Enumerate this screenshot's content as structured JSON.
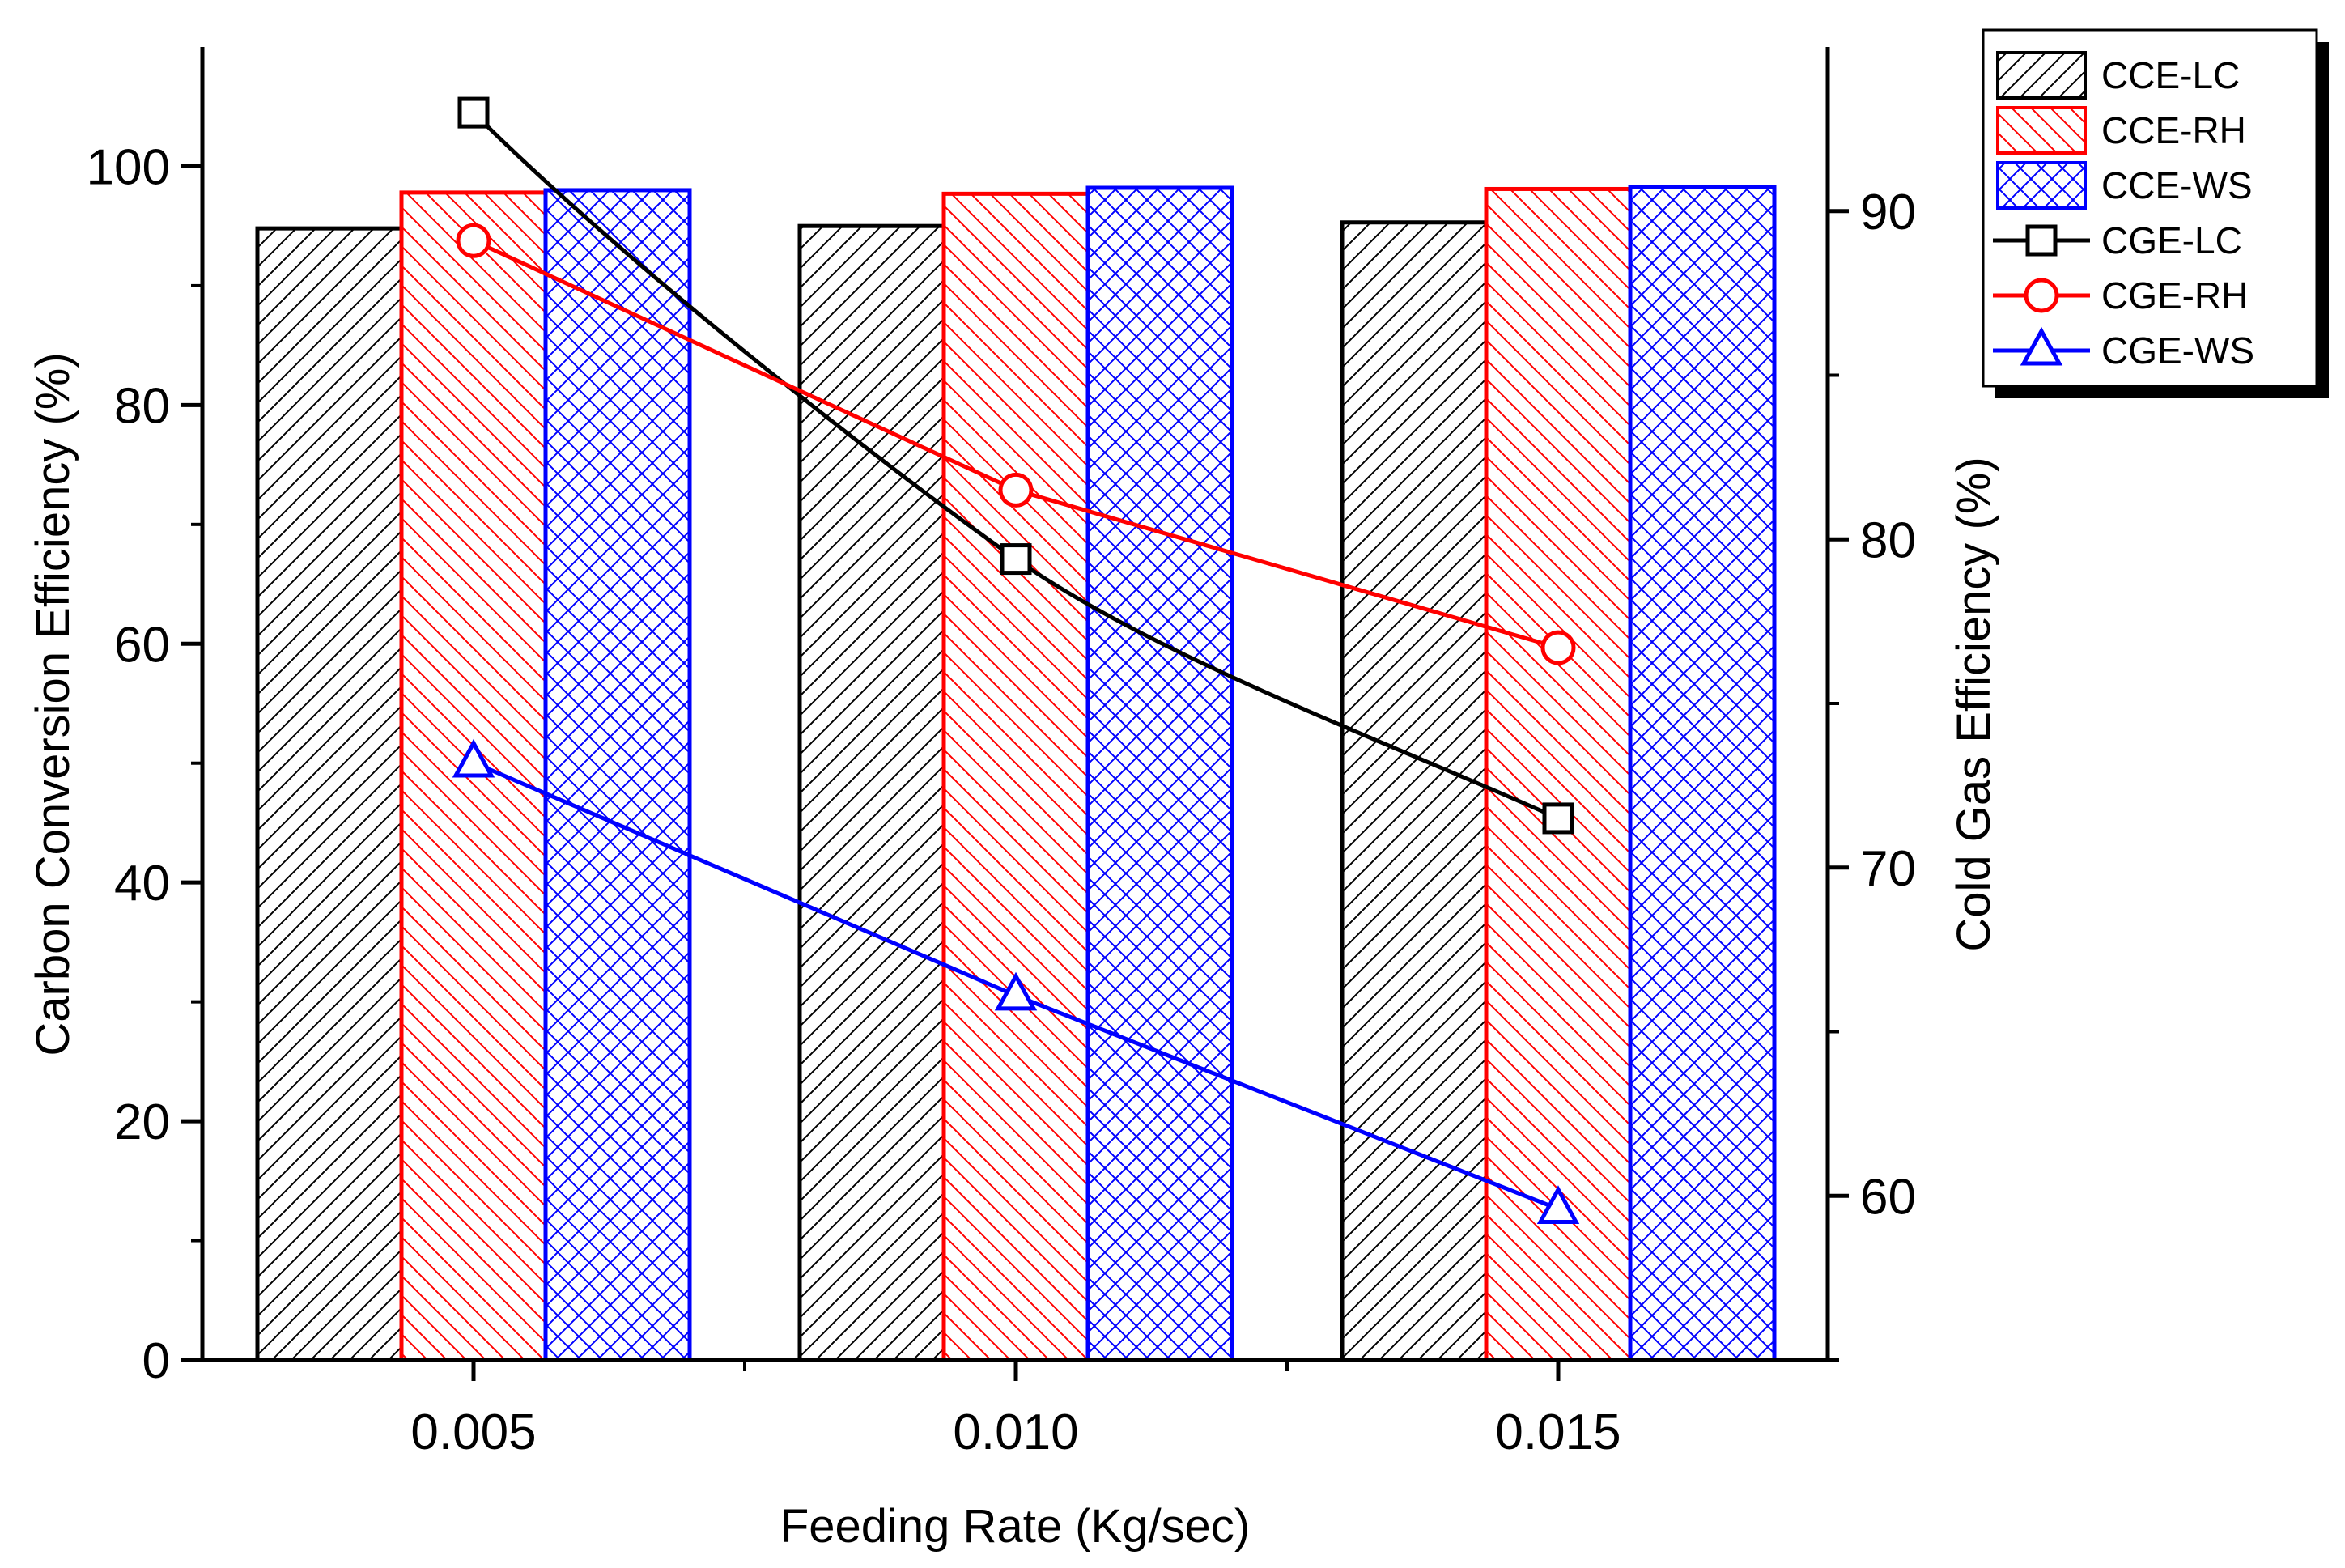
{
  "chart_data": {
    "type": "bar",
    "categories": [
      "0.005",
      "0.010",
      "0.015"
    ],
    "xlabel": "Feeding Rate (Kg/sec)",
    "ylabel": "Carbon Conversion Efficiency (%)",
    "y2label": "Cold Gas Efficiency (%)",
    "ylim": [
      0,
      110
    ],
    "y2lim": [
      55,
      95
    ],
    "yticks": [
      0,
      20,
      40,
      60,
      80,
      100
    ],
    "y2ticks": [
      60,
      70,
      80,
      90
    ],
    "bar_series": [
      {
        "name": "CCE-LC",
        "values": [
          94.8,
          95.0,
          95.3
        ],
        "color": "#000000",
        "pattern": "diag-right"
      },
      {
        "name": "CCE-RH",
        "values": [
          97.8,
          97.7,
          98.1
        ],
        "color": "#ff0000",
        "pattern": "diag-left"
      },
      {
        "name": "CCE-WS",
        "values": [
          98.0,
          98.2,
          98.3
        ],
        "color": "#0000ff",
        "pattern": "cross"
      }
    ],
    "line_series": [
      {
        "name": "CGE-LC",
        "values": [
          93.0,
          79.4,
          71.5
        ],
        "color": "#000000",
        "marker": "square",
        "curve": "spline"
      },
      {
        "name": "CGE-RH",
        "values": [
          89.1,
          81.5,
          76.7
        ],
        "color": "#ff0000",
        "marker": "circle",
        "curve": "linear"
      },
      {
        "name": "CGE-WS",
        "values": [
          73.2,
          66.1,
          59.6
        ],
        "color": "#0000ff",
        "marker": "triangle",
        "curve": "linear"
      }
    ],
    "legend_position": "top-right-outside"
  }
}
